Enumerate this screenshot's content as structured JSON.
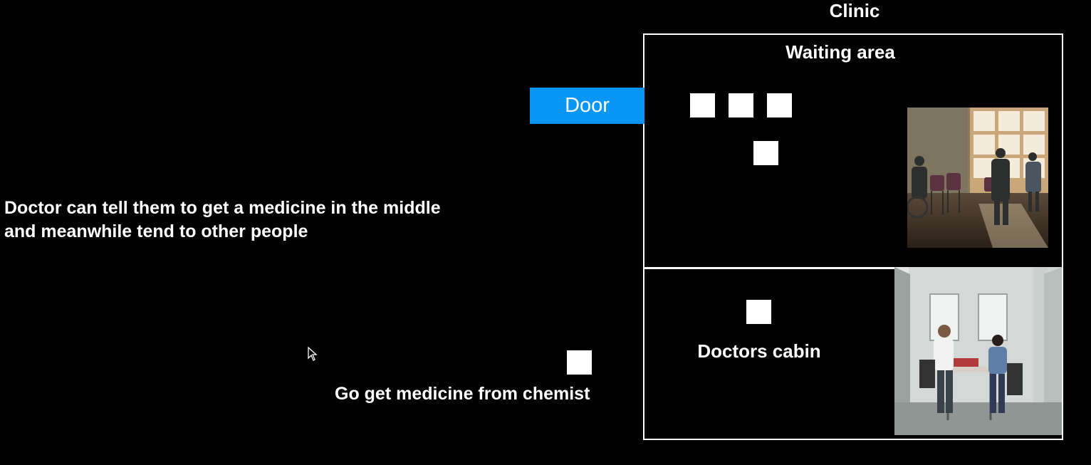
{
  "clinic": {
    "title": "Clinic",
    "waiting_area": {
      "title": "Waiting area",
      "door_label": "Door",
      "people_count": 4
    },
    "doctors_cabin": {
      "title": "Doctors cabin",
      "people_count": 1
    }
  },
  "notes": {
    "doctor_note_line1": "Doctor can tell them to get a medicine in the middle",
    "doctor_note_line2": "and meanwhile tend to other people",
    "chemist_label": "Go get medicine from chemist"
  },
  "colors": {
    "background": "#000000",
    "door": "#0a96f5",
    "lines": "#ffffff",
    "person_marker": "#ffffff"
  },
  "icons": {
    "cursor": "mouse-pointer-icon"
  }
}
